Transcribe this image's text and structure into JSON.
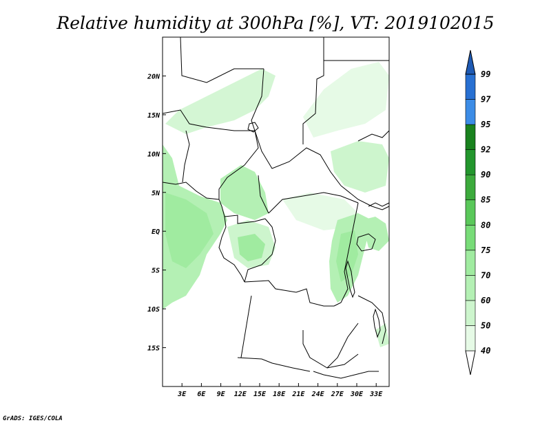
{
  "title": "Relative humidity at 300hPa [%], VT: 2019102015",
  "credit": "GrADS: IGES/COLA",
  "map": {
    "lon_range": [
      0,
      35
    ],
    "lat_range": [
      -20,
      25
    ],
    "x_ticks": [
      "3E",
      "6E",
      "9E",
      "12E",
      "15E",
      "18E",
      "21E",
      "24E",
      "27E",
      "30E",
      "33E"
    ],
    "y_ticks": [
      "20N",
      "15N",
      "10N",
      "5N",
      "EQ",
      "5S",
      "10S",
      "15S"
    ]
  },
  "colorbar": {
    "levels": [
      "40",
      "50",
      "60",
      "70",
      "75",
      "80",
      "85",
      "90",
      "92",
      "95",
      "97",
      "99"
    ],
    "colors": [
      "#ffffff",
      "#e6fae6",
      "#cdf5cd",
      "#b4f0b4",
      "#a0eba0",
      "#78dc78",
      "#5ac85a",
      "#3caa3c",
      "#23962d",
      "#19821e",
      "#3c8ce6",
      "#2870d2",
      "#1e5ab4"
    ]
  }
}
